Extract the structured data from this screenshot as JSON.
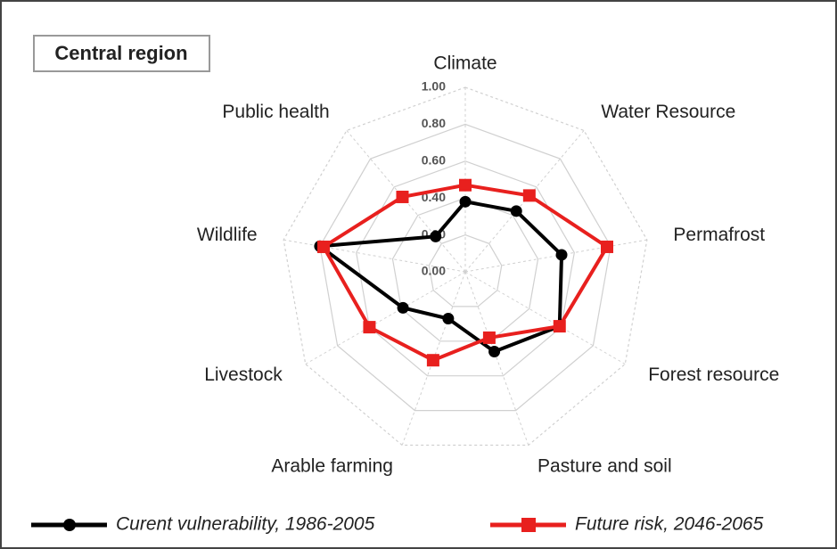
{
  "chart_data": {
    "type": "radar",
    "title": "Central region",
    "categories": [
      "Climate",
      "Water Resource",
      "Permafrost",
      "Forest resource",
      "Pasture and soil",
      "Arable farming",
      "Livestock",
      "Wildlife",
      "Public health"
    ],
    "series": [
      {
        "name": "Curent vulnerability, 1986-2005",
        "color": "#000000",
        "marker": "circle",
        "values": [
          0.38,
          0.43,
          0.53,
          0.59,
          0.46,
          0.27,
          0.39,
          0.8,
          0.25
        ]
      },
      {
        "name": "Future risk, 2046-2065",
        "color": "#e8201e",
        "marker": "square",
        "values": [
          0.47,
          0.54,
          0.78,
          0.59,
          0.38,
          0.51,
          0.6,
          0.78,
          0.53
        ]
      }
    ],
    "ylim": [
      0,
      1
    ],
    "yticks": [
      {
        "value": 0,
        "label": "0.00"
      },
      {
        "value": 0.2,
        "label": "0.20"
      },
      {
        "value": 0.4,
        "label": "0.40"
      },
      {
        "value": 0.6,
        "label": "0.60"
      },
      {
        "value": 0.8,
        "label": "0.80"
      },
      {
        "value": 1,
        "label": "1.00"
      }
    ],
    "grid": true,
    "legend": "bottom"
  }
}
